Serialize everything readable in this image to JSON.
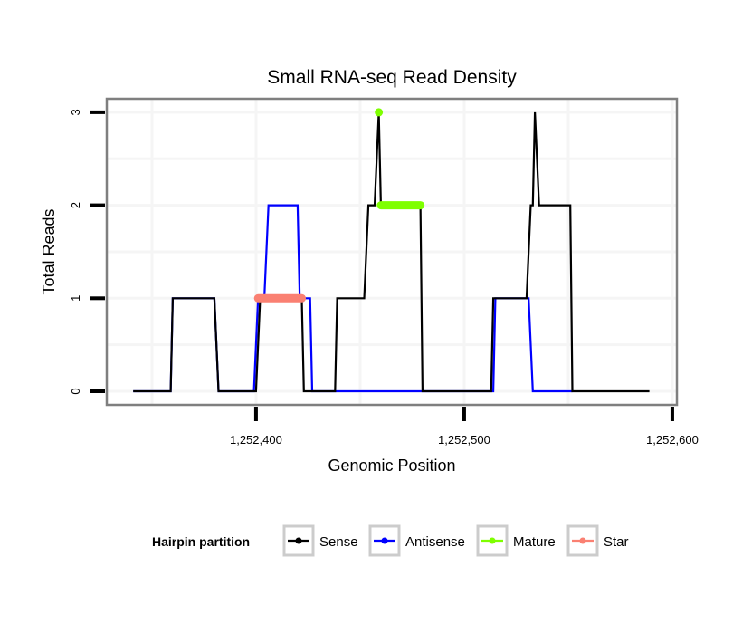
{
  "chart_data": {
    "type": "line",
    "title": "Small RNA-seq Read Density",
    "xlabel": "Genomic Position",
    "ylabel": "Total Reads",
    "xlim": [
      1252328.3,
      1252602.2
    ],
    "ylim": [
      -0.146,
      3.145
    ],
    "x_ticks": [
      1252400,
      1252500,
      1252600
    ],
    "x_tick_labels": [
      "1,252,400",
      "1,252,500",
      "1,252,600"
    ],
    "y_ticks": [
      0,
      1,
      2,
      3
    ],
    "y_tick_labels": [
      "0",
      "1",
      "2",
      "3"
    ],
    "grid": true,
    "legend": {
      "title": "Hairpin partition",
      "position": "bottom",
      "entries": [
        {
          "name": "Sense",
          "color": "#000000"
        },
        {
          "name": "Antisense",
          "color": "#0000ff"
        },
        {
          "name": "Mature",
          "color": "#7fff00"
        },
        {
          "name": "Star",
          "color": "#fa8072"
        }
      ]
    },
    "series": [
      {
        "name": "Sense",
        "color": "#000000",
        "style": "line",
        "x": [
          1252341,
          1252359,
          1252360,
          1252380,
          1252382,
          1252400,
          1252402,
          1252422,
          1252423,
          1252438,
          1252439,
          1252452,
          1252454,
          1252457,
          1252459,
          1252460,
          1252479,
          1252480,
          1252513,
          1252514,
          1252530,
          1252532,
          1252533,
          1252534,
          1252536,
          1252551,
          1252552,
          1252589
        ],
        "y": [
          0,
          0,
          1,
          1,
          0,
          0,
          1,
          1,
          0,
          0,
          1,
          1,
          2,
          2,
          3,
          2,
          2,
          0,
          0,
          1,
          1,
          2,
          2,
          3,
          2,
          2,
          0,
          0
        ]
      },
      {
        "name": "Antisense",
        "color": "#0000ff",
        "style": "line",
        "x": [
          1252341,
          1252359,
          1252360,
          1252380,
          1252382,
          1252399,
          1252401,
          1252404,
          1252406,
          1252420,
          1252421,
          1252426,
          1252427,
          1252514,
          1252515,
          1252531,
          1252533,
          1252552
        ],
        "y": [
          0,
          0,
          1,
          1,
          0,
          0,
          1,
          1,
          2,
          2,
          1,
          1,
          0,
          0,
          1,
          1,
          0,
          0
        ]
      },
      {
        "name": "Mature",
        "color": "#7fff00",
        "style": "thick-segment",
        "points": [
          {
            "x": 1252459,
            "y": 3
          }
        ],
        "segments": [
          {
            "x0": 1252460,
            "x1": 1252479,
            "y": 2
          }
        ]
      },
      {
        "name": "Star",
        "color": "#fa8072",
        "style": "thick-segment",
        "points": [],
        "segments": [
          {
            "x0": 1252401,
            "x1": 1252422,
            "y": 1
          }
        ]
      }
    ]
  }
}
